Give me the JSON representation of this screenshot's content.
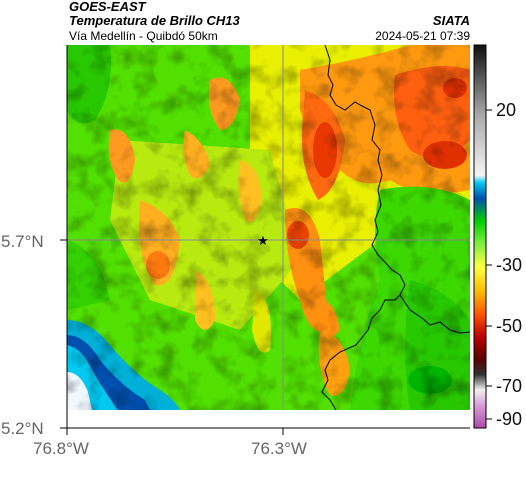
{
  "header": {
    "source": "GOES-EAST",
    "product": "Temperatura de Brillo CH13",
    "region": "Vía Medellín - Quibdó 50km",
    "org": "SIATA",
    "datetime": "2024-05-21 07:39"
  },
  "axes": {
    "lat_labels": [
      "5.7°N",
      "5.2°N"
    ],
    "lon_labels": [
      "76.8°W",
      "76.3°W"
    ]
  },
  "colorbar": {
    "ticks": [
      "20",
      "-30",
      "-50",
      "-70",
      "-90"
    ]
  },
  "marker": {
    "symbol": "★"
  },
  "colors": {
    "gridline": "#8a8a8a",
    "border": "#000000"
  }
}
